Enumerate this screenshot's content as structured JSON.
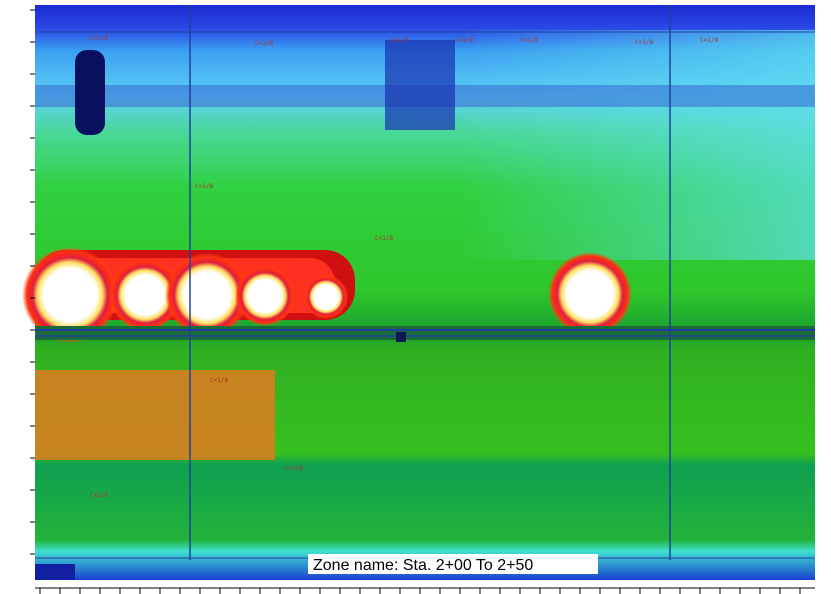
{
  "zone_label": "Zone name: Sta. 2+00 To 2+50",
  "crack_labels": [
    "C<1/8",
    "C<1/8",
    "C<1/8",
    "C<1/8",
    "C<1/8",
    "C<1/8",
    "C<1/8",
    "C<1/8",
    "C<1/8",
    "C<1/8",
    "C<1/8",
    "C<1/8"
  ]
}
